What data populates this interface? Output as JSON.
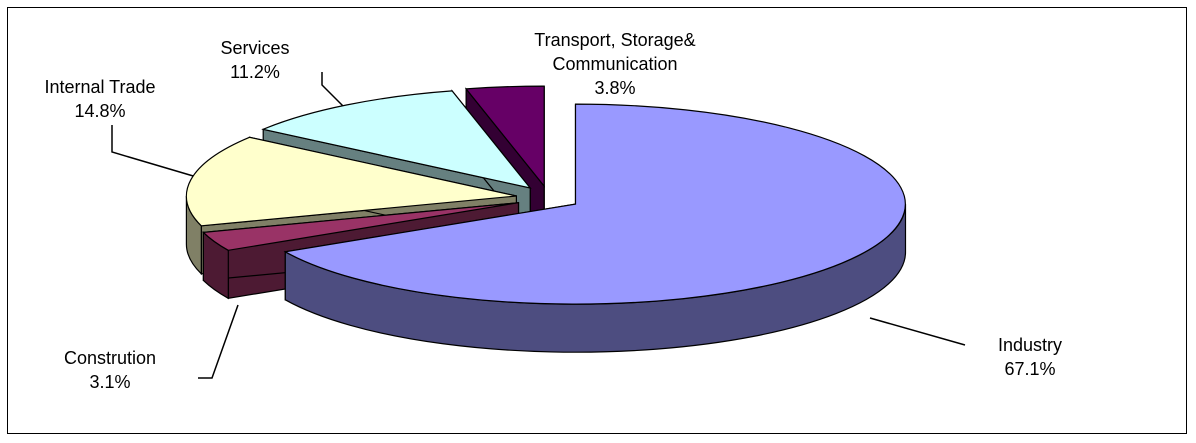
{
  "chart_data": {
    "type": "pie3d",
    "categories": [
      "Industry",
      "Constrution",
      "Internal Trade",
      "Services",
      "Transport, Storage& Communication"
    ],
    "values": [
      67.1,
      3.1,
      14.8,
      11.2,
      3.8
    ],
    "value_labels": [
      "67.1%",
      "3.1%",
      "14.8%",
      "11.2%",
      "3.8%"
    ],
    "colors": [
      "#9999ff",
      "#993366",
      "#ffffcc",
      "#ccffff",
      "#660066"
    ]
  }
}
